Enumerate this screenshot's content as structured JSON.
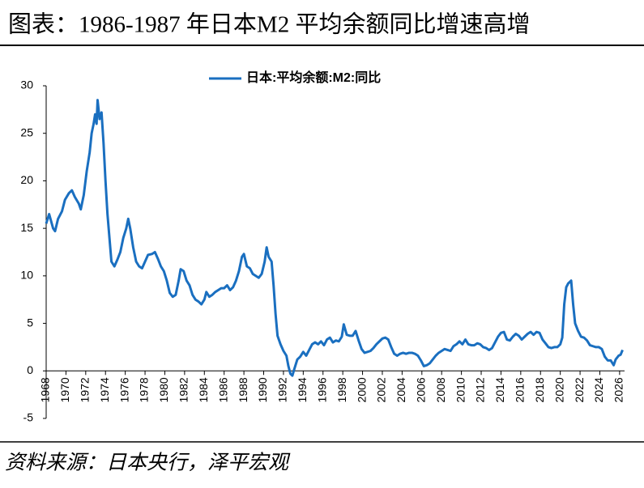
{
  "chart_data": {
    "type": "line",
    "title": "图表：1986-1987 年日本M2 平均余额同比增速高增",
    "source": "资料来源：日本央行，泽平宏观",
    "xlim": [
      1968,
      2026.5
    ],
    "ylim": [
      -5,
      30
    ],
    "yticks": [
      -5,
      0,
      5,
      10,
      15,
      20,
      25,
      30
    ],
    "xticks": [
      1968,
      1970,
      1972,
      1974,
      1976,
      1978,
      1980,
      1982,
      1984,
      1986,
      1988,
      1990,
      1992,
      1994,
      1996,
      1998,
      2000,
      2002,
      2004,
      2006,
      2008,
      2010,
      2012,
      2014,
      2016,
      2018,
      2020,
      2022,
      2024,
      2026
    ],
    "legend": "top",
    "x": [
      1968.0,
      1968.3,
      1968.7,
      1968.9,
      1969.2,
      1969.6,
      1969.9,
      1970.3,
      1970.6,
      1970.9,
      1971.3,
      1971.5,
      1971.8,
      1972.1,
      1972.4,
      1972.6,
      1972.8,
      1972.95,
      1973.1,
      1973.2,
      1973.4,
      1973.6,
      1973.8,
      1974.0,
      1974.2,
      1974.4,
      1974.6,
      1974.9,
      1975.2,
      1975.5,
      1975.8,
      1976.1,
      1976.3,
      1976.5,
      1976.8,
      1977.1,
      1977.4,
      1977.7,
      1978.0,
      1978.3,
      1978.7,
      1979.0,
      1979.3,
      1979.6,
      1979.9,
      1980.2,
      1980.5,
      1980.8,
      1981.1,
      1981.4,
      1981.6,
      1981.9,
      1982.2,
      1982.5,
      1982.8,
      1983.1,
      1983.4,
      1983.7,
      1984.0,
      1984.2,
      1984.5,
      1984.8,
      1985.1,
      1985.4,
      1985.7,
      1986.0,
      1986.3,
      1986.6,
      1986.9,
      1987.2,
      1987.5,
      1987.8,
      1988.0,
      1988.3,
      1988.6,
      1988.9,
      1989.2,
      1989.5,
      1989.8,
      1990.1,
      1990.3,
      1990.5,
      1990.8,
      1991.0,
      1991.2,
      1991.4,
      1991.7,
      1992.0,
      1992.3,
      1992.5,
      1992.7,
      1992.9,
      1993.1,
      1993.4,
      1993.7,
      1994.0,
      1994.3,
      1994.6,
      1994.9,
      1995.2,
      1995.5,
      1995.8,
      1996.1,
      1996.4,
      1996.7,
      1997.0,
      1997.3,
      1997.6,
      1997.9,
      1998.1,
      1998.4,
      1998.7,
      1999.0,
      1999.3,
      1999.6,
      1999.9,
      2000.2,
      2000.5,
      2000.8,
      2001.1,
      2001.4,
      2001.7,
      2002.0,
      2002.3,
      2002.6,
      2002.9,
      2003.2,
      2003.5,
      2003.8,
      2004.1,
      2004.4,
      2004.7,
      2005.0,
      2005.3,
      2005.6,
      2005.9,
      2006.2,
      2006.5,
      2006.8,
      2007.1,
      2007.4,
      2007.7,
      2008.0,
      2008.3,
      2008.6,
      2008.9,
      2009.2,
      2009.5,
      2009.8,
      2010.1,
      2010.4,
      2010.7,
      2011.0,
      2011.3,
      2011.6,
      2011.9,
      2012.2,
      2012.5,
      2012.8,
      2013.1,
      2013.4,
      2013.7,
      2014.0,
      2014.3,
      2014.6,
      2014.9,
      2015.2,
      2015.5,
      2015.8,
      2016.1,
      2016.4,
      2016.7,
      2017.0,
      2017.3,
      2017.6,
      2017.9,
      2018.2,
      2018.5,
      2018.8,
      2019.1,
      2019.4,
      2019.7,
      2020.0,
      2020.2,
      2020.4,
      2020.6,
      2020.8,
      2021.0,
      2021.1,
      2021.3,
      2021.5,
      2021.8,
      2022.1,
      2022.4,
      2022.7,
      2023.0,
      2023.3,
      2023.6,
      2023.9,
      2024.2,
      2024.5,
      2024.8,
      2025.1,
      2025.4,
      2025.6,
      2025.9,
      2026.1,
      2026.3
    ],
    "series": [
      {
        "name": "日本:平均余额:M2:同比",
        "color": "#1a6fc0",
        "values": [
          15.5,
          16.5,
          15,
          14.7,
          16,
          16.8,
          18,
          18.7,
          19,
          18.3,
          17.6,
          17,
          18.5,
          21,
          23,
          25,
          26,
          27,
          26,
          28.5,
          26.5,
          27.2,
          24,
          20,
          16.5,
          14,
          11.5,
          11,
          11.7,
          12.5,
          14,
          15,
          16,
          15,
          13,
          11.5,
          11,
          10.8,
          11.5,
          12.2,
          12.3,
          12.5,
          11.8,
          11,
          10.5,
          9.5,
          8.2,
          7.8,
          8,
          9.5,
          10.7,
          10.5,
          9.5,
          9,
          8,
          7.5,
          7.3,
          7,
          7.5,
          8.3,
          7.8,
          8,
          8.3,
          8.5,
          8.7,
          8.7,
          9,
          8.5,
          8.8,
          9.5,
          10.5,
          12,
          12.3,
          11,
          10.8,
          10.2,
          10,
          9.8,
          10.2,
          11.5,
          13,
          12,
          11.5,
          9,
          6,
          3.7,
          2.8,
          2.1,
          1.6,
          0.5,
          -0.3,
          -0.5,
          0.2,
          1.2,
          1.5,
          2,
          1.6,
          2.2,
          2.8,
          3,
          2.8,
          3.1,
          2.7,
          3.3,
          3.5,
          3,
          3.2,
          3.1,
          3.6,
          4.9,
          3.8,
          3.7,
          3.7,
          4.2,
          3.2,
          2.3,
          1.9,
          2,
          2.1,
          2.4,
          2.8,
          3.1,
          3.4,
          3.5,
          3.3,
          2.5,
          1.8,
          1.6,
          1.8,
          1.9,
          1.8,
          1.9,
          1.9,
          1.8,
          1.6,
          1.1,
          0.5,
          0.6,
          0.8,
          1.2,
          1.6,
          1.9,
          2.1,
          2.3,
          2.2,
          2.1,
          2.6,
          2.8,
          3.1,
          2.8,
          3.3,
          2.8,
          2.7,
          2.7,
          2.9,
          2.8,
          2.5,
          2.4,
          2.2,
          2.4,
          3,
          3.6,
          4,
          4.1,
          3.3,
          3.2,
          3.6,
          3.9,
          3.7,
          3.3,
          3.6,
          3.9,
          4.1,
          3.8,
          4.1,
          4,
          3.3,
          2.9,
          2.5,
          2.4,
          2.5,
          2.5,
          2.8,
          3.5,
          7,
          8.8,
          9.2,
          9.4,
          9.5,
          7,
          5,
          4.2,
          3.6,
          3.5,
          3.2,
          2.7,
          2.6,
          2.5,
          2.5,
          2.3,
          1.5,
          1.1,
          1.1,
          0.6,
          1.2,
          1.6,
          1.7,
          2.2
        ]
      }
    ]
  }
}
